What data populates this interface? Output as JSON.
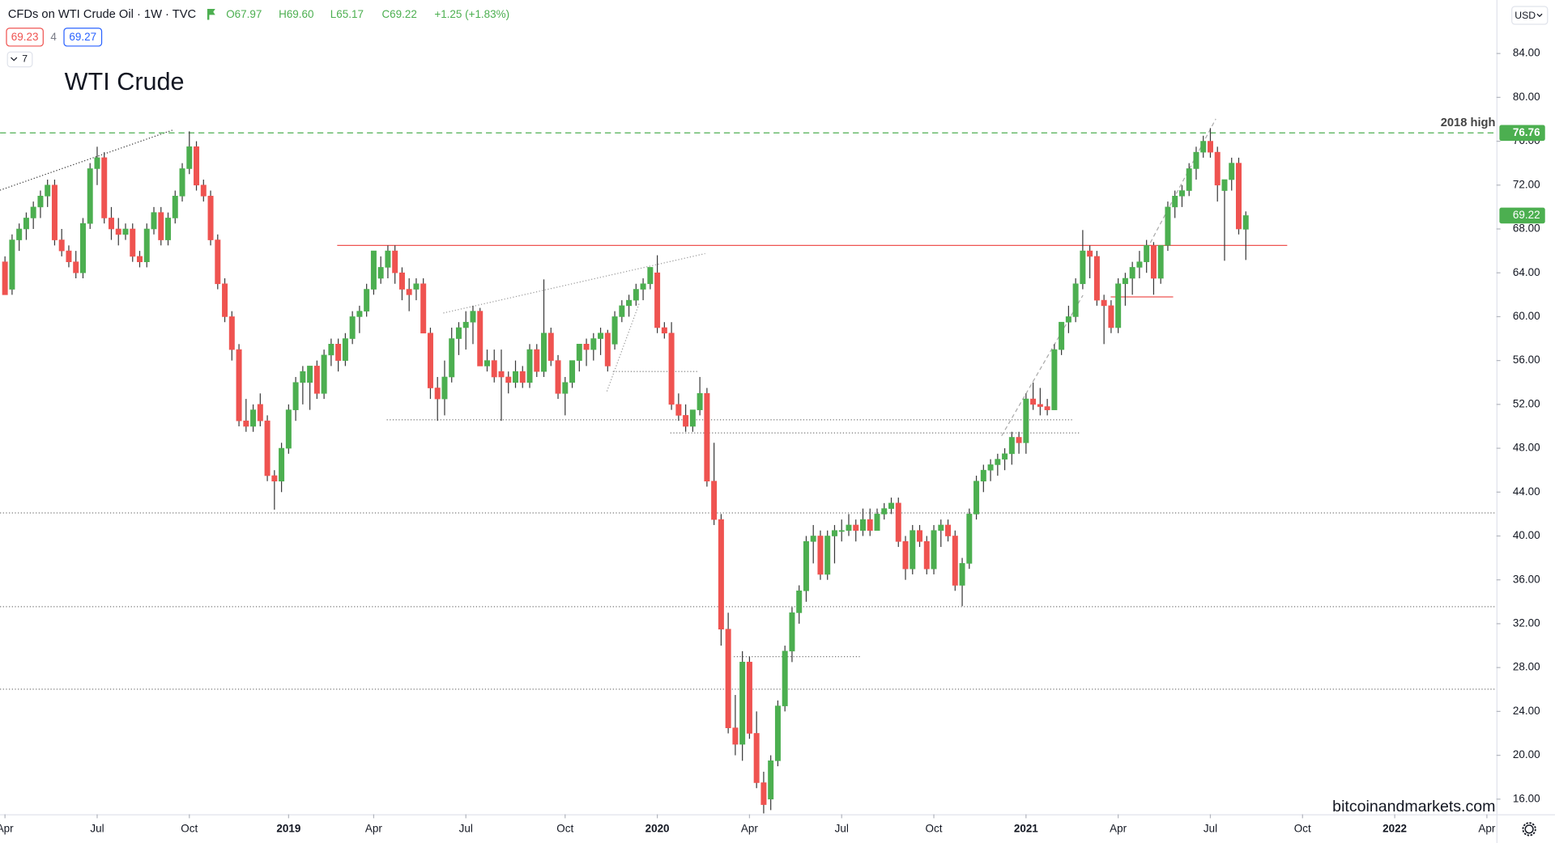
{
  "chart_data": {
    "type": "candlestick",
    "symbol": "CFDs on WTI Crude Oil · 1W · TVC",
    "legend_values": [
      "O67.97",
      "H69.60",
      "L65.17",
      "C69.22",
      "+1.25 (+1.83%)"
    ],
    "bid": 69.23,
    "spread": 4,
    "ask": 69.27,
    "indicators": 7,
    "title": "WTI Crude",
    "currency": "USD",
    "watermark": "bitcoinandmarkets.com",
    "up_color": "#4caf50",
    "down_color": "#ef5350",
    "wick_color": "#3a3a3a",
    "ylim": [
      14.62,
      88.88
    ],
    "yticks": [
      {
        "value": 16,
        "label": "16.00"
      },
      {
        "value": 20,
        "label": "20.00"
      },
      {
        "value": 24,
        "label": "24.00"
      },
      {
        "value": 28,
        "label": "28.00"
      },
      {
        "value": 32,
        "label": "32.00"
      },
      {
        "value": 36,
        "label": "36.00"
      },
      {
        "value": 40,
        "label": "40.00"
      },
      {
        "value": 44,
        "label": "44.00"
      },
      {
        "value": 48,
        "label": "48.00"
      },
      {
        "value": 52,
        "label": "52.00"
      },
      {
        "value": 56,
        "label": "56.00"
      },
      {
        "value": 60,
        "label": "60.00"
      },
      {
        "value": 64,
        "label": "64.00"
      },
      {
        "value": 68,
        "label": "68.00"
      },
      {
        "value": 72,
        "label": "72.00"
      },
      {
        "value": 76,
        "label": "76.00"
      },
      {
        "value": 80,
        "label": "80.00"
      },
      {
        "value": 84,
        "label": "84.00"
      }
    ],
    "xticks": [
      {
        "value": "2018-04",
        "label": "Apr"
      },
      {
        "value": "2018-07",
        "label": "Jul"
      },
      {
        "value": "2018-10",
        "label": "Oct"
      },
      {
        "value": "2019-01",
        "label": "2019"
      },
      {
        "value": "2019-04",
        "label": "Apr"
      },
      {
        "value": "2019-07",
        "label": "Jul"
      },
      {
        "value": "2019-10",
        "label": "Oct"
      },
      {
        "value": "2020-01",
        "label": "2020"
      },
      {
        "value": "2020-04",
        "label": "Apr"
      },
      {
        "value": "2020-07",
        "label": "Jul"
      },
      {
        "value": "2020-10",
        "label": "Oct"
      },
      {
        "value": "2021-01",
        "label": "2021"
      },
      {
        "value": "2021-04",
        "label": "Apr"
      },
      {
        "value": "2021-07",
        "label": "Jul"
      },
      {
        "value": "2021-10",
        "label": "Oct"
      },
      {
        "value": "2022-01",
        "label": "2022"
      },
      {
        "value": "2022-04",
        "label": "Apr"
      }
    ],
    "levels": [
      {
        "value": 76.76,
        "label": "2018 high",
        "color": "#4caf50",
        "dash": "6 4"
      },
      {
        "value": 66.5,
        "color": "#ef5350",
        "dash": "none"
      },
      {
        "value": 61.8,
        "color": "#ef5350",
        "dash": "none"
      },
      {
        "value": 42.1,
        "color": "#777777",
        "dash": "1 2"
      },
      {
        "value": 33.55,
        "color": "#777777",
        "dash": "1 2"
      },
      {
        "value": 26.03,
        "color": "#777777",
        "dash": "1 2"
      },
      {
        "value": 50.6,
        "color": "#777777",
        "dash": "1 2"
      },
      {
        "value": 49.4,
        "color": "#777777",
        "dash": "1 2"
      },
      {
        "value": 55.0,
        "color": "#777777",
        "dash": "1 2"
      },
      {
        "value": 29.0,
        "color": "#777777",
        "dash": "1 2"
      }
    ],
    "x": [
      "2018-04",
      "2018-04",
      "2018-04",
      "2018-04",
      "2018-04",
      "2018-05",
      "2018-05",
      "2018-05",
      "2018-05",
      "2018-06",
      "2018-06",
      "2018-06",
      "2018-06",
      "2018-07",
      "2018-07",
      "2018-07",
      "2018-07",
      "2018-07",
      "2018-08",
      "2018-08",
      "2018-08",
      "2018-08",
      "2018-09",
      "2018-09",
      "2018-09",
      "2018-09",
      "2018-10",
      "2018-10",
      "2018-10",
      "2018-10",
      "2018-10",
      "2018-11",
      "2018-11",
      "2018-11",
      "2018-11",
      "2018-12",
      "2018-12",
      "2018-12",
      "2018-12",
      "2018-12",
      "2019-01",
      "2019-01",
      "2019-01",
      "2019-01",
      "2019-02",
      "2019-02",
      "2019-02",
      "2019-02",
      "2019-03",
      "2019-03",
      "2019-03",
      "2019-03",
      "2019-04",
      "2019-04",
      "2019-04",
      "2019-04",
      "2019-04",
      "2019-05",
      "2019-05",
      "2019-05",
      "2019-05",
      "2019-06",
      "2019-06",
      "2019-06",
      "2019-06",
      "2019-07",
      "2019-07",
      "2019-07",
      "2019-07",
      "2019-07",
      "2019-08",
      "2019-08",
      "2019-08",
      "2019-08",
      "2019-09",
      "2019-09",
      "2019-09",
      "2019-09",
      "2019-09",
      "2019-10",
      "2019-10",
      "2019-10",
      "2019-10",
      "2019-11",
      "2019-11",
      "2019-11",
      "2019-11",
      "2019-12",
      "2019-12",
      "2019-12",
      "2019-12",
      "2019-12",
      "2020-01",
      "2020-01",
      "2020-01",
      "2020-01",
      "2020-02",
      "2020-02",
      "2020-02",
      "2020-02",
      "2020-03",
      "2020-03",
      "2020-03",
      "2020-03",
      "2020-03",
      "2020-04",
      "2020-04",
      "2020-04",
      "2020-04",
      "2020-05",
      "2020-05",
      "2020-05",
      "2020-05",
      "2020-06",
      "2020-06",
      "2020-06",
      "2020-06",
      "2020-06",
      "2020-07",
      "2020-07",
      "2020-07",
      "2020-07",
      "2020-08",
      "2020-08",
      "2020-08",
      "2020-08",
      "2020-08",
      "2020-09",
      "2020-09",
      "2020-09",
      "2020-09",
      "2020-10",
      "2020-10",
      "2020-10",
      "2020-10",
      "2020-11",
      "2020-11",
      "2020-11",
      "2020-11",
      "2020-11",
      "2020-12",
      "2020-12",
      "2020-12",
      "2020-12",
      "2021-01",
      "2021-01",
      "2021-01",
      "2021-01",
      "2021-02",
      "2021-02",
      "2021-02",
      "2021-02",
      "2021-03",
      "2021-03",
      "2021-03",
      "2021-03",
      "2021-03",
      "2021-04",
      "2021-04",
      "2021-04",
      "2021-04",
      "2021-05",
      "2021-05",
      "2021-05",
      "2021-05",
      "2021-05",
      "2021-06",
      "2021-06",
      "2021-06",
      "2021-06",
      "2021-07",
      "2021-07",
      "2021-07",
      "2021-07",
      "2021-08",
      "2021-08"
    ],
    "ohlc": [
      [
        65,
        65.5,
        62,
        62
      ],
      [
        62.5,
        67.5,
        62,
        67
      ],
      [
        67,
        68.5,
        66,
        68
      ],
      [
        68,
        69.5,
        67,
        69
      ],
      [
        69,
        70.5,
        68,
        70
      ],
      [
        70,
        71.5,
        69,
        71
      ],
      [
        71,
        72.5,
        70,
        72
      ],
      [
        72,
        72.5,
        66.5,
        67
      ],
      [
        67,
        68,
        65.5,
        66
      ],
      [
        66,
        66.5,
        64.5,
        65
      ],
      [
        65,
        66,
        63.5,
        64
      ],
      [
        64,
        69,
        63.5,
        68.5
      ],
      [
        68.5,
        74,
        68,
        73.5
      ],
      [
        73.5,
        75.5,
        72,
        74.5
      ],
      [
        74.5,
        75,
        68.5,
        69
      ],
      [
        69,
        70,
        67,
        68
      ],
      [
        68,
        69,
        66.5,
        67.5
      ],
      [
        67.5,
        68.5,
        67,
        68
      ],
      [
        68,
        68.5,
        65,
        65.5
      ],
      [
        65.5,
        66,
        64.5,
        65
      ],
      [
        65,
        68.5,
        64.5,
        68
      ],
      [
        68,
        70,
        67.5,
        69.5
      ],
      [
        69.5,
        70,
        66.5,
        67
      ],
      [
        67,
        69.5,
        66.5,
        69
      ],
      [
        69,
        71.5,
        68.5,
        71
      ],
      [
        71,
        74,
        70.5,
        73.5
      ],
      [
        73.5,
        76.9,
        73,
        75.5
      ],
      [
        75.5,
        76,
        71.5,
        72
      ],
      [
        72,
        72.5,
        70.5,
        71
      ],
      [
        71,
        71.5,
        66.5,
        67
      ],
      [
        67,
        67.5,
        62.5,
        63
      ],
      [
        63,
        63.5,
        59.5,
        60
      ],
      [
        60,
        60.5,
        56,
        57
      ],
      [
        57,
        57.5,
        50,
        50.5
      ],
      [
        50.5,
        52.5,
        49.5,
        50
      ],
      [
        50,
        52,
        49.5,
        51.5
      ],
      [
        52,
        53,
        50,
        50.5
      ],
      [
        50.5,
        51,
        45,
        45.5
      ],
      [
        45.5,
        46,
        42.4,
        45
      ],
      [
        45,
        48.5,
        44,
        48
      ],
      [
        48,
        52,
        47.5,
        51.5
      ],
      [
        51.5,
        54.5,
        50.5,
        54
      ],
      [
        54,
        55.5,
        52,
        55
      ],
      [
        54,
        55.5,
        51.5,
        55.5
      ],
      [
        55.5,
        56,
        52.5,
        53
      ],
      [
        53,
        57,
        52.5,
        56.5
      ],
      [
        56.5,
        58,
        55.5,
        57.5
      ],
      [
        57.5,
        58,
        55,
        56
      ],
      [
        56,
        58.5,
        55.5,
        58
      ],
      [
        58,
        60.5,
        57.5,
        60
      ],
      [
        60,
        61,
        58.5,
        60.5
      ],
      [
        60.5,
        63,
        60,
        62.5
      ],
      [
        62.5,
        66,
        62,
        66
      ],
      [
        63.5,
        65.5,
        63,
        64.5
      ],
      [
        64.5,
        66.5,
        63.5,
        66
      ],
      [
        66,
        66.5,
        63,
        64
      ],
      [
        64,
        64.5,
        61.5,
        62.5
      ],
      [
        62.5,
        63.5,
        60.5,
        62
      ],
      [
        62.5,
        63.5,
        61.5,
        63
      ],
      [
        63,
        63.5,
        58.5,
        58.5
      ],
      [
        58.5,
        59,
        52.5,
        53.5
      ],
      [
        53.5,
        54.5,
        50.5,
        52.5
      ],
      [
        52.5,
        56,
        51,
        54.5
      ],
      [
        54.5,
        59,
        54,
        58
      ],
      [
        58,
        59.5,
        56.5,
        59
      ],
      [
        59,
        60.5,
        57,
        59.5
      ],
      [
        59.5,
        61,
        57.5,
        60.5
      ],
      [
        60.5,
        60.8,
        55.5,
        55.5
      ],
      [
        55.5,
        57,
        55,
        56
      ],
      [
        56,
        57,
        54,
        54.5
      ],
      [
        55,
        57,
        50.5,
        54.5
      ],
      [
        54.5,
        55,
        53,
        54
      ],
      [
        54,
        56,
        53.5,
        55
      ],
      [
        55,
        55.5,
        53.5,
        54
      ],
      [
        54,
        57.5,
        53.5,
        57
      ],
      [
        57,
        57.5,
        54.5,
        55
      ],
      [
        55,
        63.4,
        54.5,
        58.5
      ],
      [
        58.5,
        59,
        55.5,
        56
      ],
      [
        56,
        56.5,
        52.5,
        53
      ],
      [
        53,
        54.5,
        51,
        54
      ],
      [
        54,
        56,
        53.5,
        56
      ],
      [
        56,
        57.5,
        55,
        57.5
      ],
      [
        57.5,
        58,
        55.5,
        57
      ],
      [
        57,
        58.5,
        56,
        58
      ],
      [
        58,
        59,
        56.5,
        58.5
      ],
      [
        58.5,
        58.8,
        55,
        55.5
      ],
      [
        57.5,
        60.5,
        57,
        60
      ],
      [
        60,
        61.5,
        59.5,
        61
      ],
      [
        61,
        62,
        60,
        61.5
      ],
      [
        61.5,
        63,
        61,
        62.5
      ],
      [
        62.5,
        63.5,
        61.5,
        63
      ],
      [
        63,
        64.5,
        62.5,
        64.5
      ],
      [
        64,
        65.6,
        58.5,
        59
      ],
      [
        59,
        59.5,
        58,
        58.5
      ],
      [
        58.5,
        59.5,
        51.5,
        52
      ],
      [
        52,
        53,
        50.5,
        51
      ],
      [
        51,
        52,
        49.5,
        50
      ],
      [
        50,
        51.5,
        49.5,
        51.5
      ],
      [
        51.5,
        54.5,
        51,
        53
      ],
      [
        53,
        53.5,
        44.5,
        45
      ],
      [
        45,
        48.5,
        41,
        41.5
      ],
      [
        41.5,
        42,
        30,
        31.5
      ],
      [
        31.5,
        33,
        22,
        22.5
      ],
      [
        22.5,
        25.5,
        20,
        21
      ],
      [
        21,
        29.5,
        19.5,
        28.5
      ],
      [
        28.5,
        29,
        21.5,
        22
      ],
      [
        22,
        24,
        17,
        17.5
      ],
      [
        17.5,
        18.5,
        14.7,
        15.5
      ],
      [
        16,
        20,
        15,
        19.5
      ],
      [
        19.5,
        25,
        19,
        24.5
      ],
      [
        24.5,
        30,
        24,
        29.5
      ],
      [
        29.5,
        33.5,
        28.5,
        33
      ],
      [
        33,
        35.5,
        32,
        35
      ],
      [
        35,
        40,
        34,
        39.5
      ],
      [
        39.5,
        41,
        37.5,
        40
      ],
      [
        40,
        40.5,
        36,
        36.5
      ],
      [
        36.5,
        40.5,
        36,
        40
      ],
      [
        40,
        41,
        37.5,
        40.5
      ],
      [
        40.5,
        41.5,
        39.5,
        40.5
      ],
      [
        40.5,
        42,
        40,
        41
      ],
      [
        41,
        41.5,
        39.5,
        40.5
      ],
      [
        40.5,
        42.5,
        40,
        41.5
      ],
      [
        41.5,
        42.5,
        40,
        40.5
      ],
      [
        40.5,
        42.5,
        40.5,
        42
      ],
      [
        42,
        43,
        41.5,
        42.5
      ],
      [
        42.5,
        43.5,
        42,
        43
      ],
      [
        43,
        43.5,
        39,
        39.5
      ],
      [
        39.5,
        40,
        36,
        37
      ],
      [
        37,
        41,
        36.5,
        40.5
      ],
      [
        40.5,
        41,
        39,
        39.5
      ],
      [
        39.5,
        40,
        36.5,
        37
      ],
      [
        37,
        41,
        36.5,
        40.5
      ],
      [
        40.5,
        41.5,
        39,
        41
      ],
      [
        41,
        41.5,
        39.5,
        40
      ],
      [
        40,
        40.5,
        35,
        35.5
      ],
      [
        35.5,
        38,
        33.6,
        37.5
      ],
      [
        37.5,
        42.5,
        37,
        42
      ],
      [
        42,
        45.5,
        41.5,
        45
      ],
      [
        45,
        46.5,
        44,
        46
      ],
      [
        46,
        47,
        45,
        46.5
      ],
      [
        46.5,
        47.5,
        45.5,
        47
      ],
      [
        47,
        48,
        46,
        47.5
      ],
      [
        47.5,
        49.5,
        46.5,
        49
      ],
      [
        49,
        49.5,
        47.5,
        48.5
      ],
      [
        48.5,
        53,
        47.5,
        52.5
      ],
      [
        52.5,
        54,
        51.5,
        52
      ],
      [
        52,
        53.5,
        51,
        51.8
      ],
      [
        51.8,
        52.5,
        51,
        51.5
      ],
      [
        51.5,
        57.5,
        51.5,
        57
      ],
      [
        57,
        59.5,
        56.5,
        59.5
      ],
      [
        59.5,
        61,
        58.5,
        60
      ],
      [
        60,
        63.5,
        59.5,
        63
      ],
      [
        63,
        67.9,
        62.5,
        66
      ],
      [
        66,
        66.5,
        63.5,
        65.5
      ],
      [
        65.5,
        66,
        61,
        61.5
      ],
      [
        61.5,
        62,
        57.5,
        61
      ],
      [
        61,
        61.5,
        58.5,
        59
      ],
      [
        59,
        63.5,
        58.5,
        63
      ],
      [
        63,
        64,
        61,
        63.5
      ],
      [
        63.5,
        65,
        62,
        64.5
      ],
      [
        64.5,
        66,
        63.5,
        65
      ],
      [
        65,
        67,
        64,
        66.5
      ],
      [
        66.5,
        66.8,
        62,
        63.5
      ],
      [
        63.5,
        66.5,
        63,
        66.5
      ],
      [
        66.5,
        70.5,
        66,
        70
      ],
      [
        70,
        71.5,
        69,
        71
      ],
      [
        71,
        72,
        70,
        71.5
      ],
      [
        71.5,
        74,
        71,
        73.5
      ],
      [
        73.5,
        75.5,
        72.5,
        75
      ],
      [
        75,
        76.5,
        74.5,
        76
      ],
      [
        76,
        77.2,
        74.5,
        75
      ],
      [
        75,
        75.5,
        70.5,
        72
      ],
      [
        71.5,
        72.5,
        65.1,
        72.5
      ],
      [
        72.5,
        74.5,
        71.5,
        74
      ],
      [
        74,
        74.5,
        67.5,
        68
      ],
      [
        67.97,
        69.6,
        65.17,
        69.22
      ]
    ]
  }
}
